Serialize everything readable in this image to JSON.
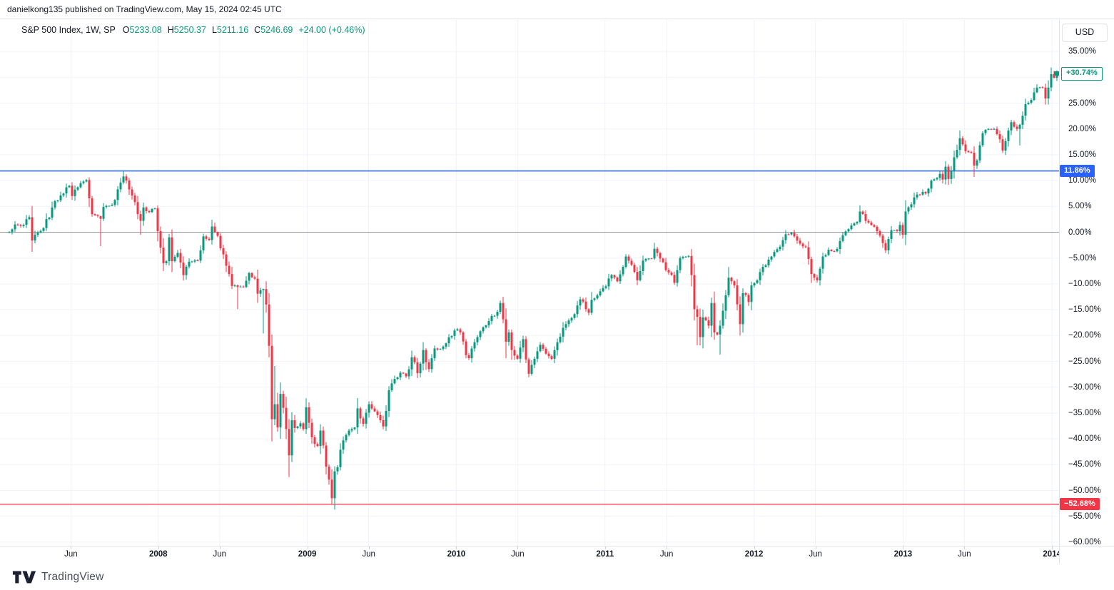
{
  "publish_bar": {
    "text": "danielkong135 published on TradingView.com, May 15, 2024 02:45 UTC"
  },
  "legend": {
    "symbol_text": "S&P 500 Index, 1W, SP",
    "fields": [
      {
        "label": "O",
        "value": "5233.08"
      },
      {
        "label": "H",
        "value": "5250.37"
      },
      {
        "label": "L",
        "value": "5211.16"
      },
      {
        "label": "C",
        "value": "5246.69"
      }
    ],
    "change_text": "+24.00 (+0.46%)"
  },
  "price_axis": {
    "currency_button": "USD",
    "ticks": [
      {
        "pct": 35,
        "label": "35.00%"
      },
      {
        "pct": 30,
        "label": "30.00%"
      },
      {
        "pct": 25,
        "label": "25.00%"
      },
      {
        "pct": 20,
        "label": "20.00%"
      },
      {
        "pct": 15,
        "label": "15.00%"
      },
      {
        "pct": 10,
        "label": "10.00%"
      },
      {
        "pct": 5,
        "label": "5.00%"
      },
      {
        "pct": 0,
        "label": "0.00%"
      },
      {
        "pct": -5,
        "label": "−5.00%"
      },
      {
        "pct": -10,
        "label": "−10.00%"
      },
      {
        "pct": -15,
        "label": "−15.00%"
      },
      {
        "pct": -20,
        "label": "−20.00%"
      },
      {
        "pct": -25,
        "label": "−25.00%"
      },
      {
        "pct": -30,
        "label": "−30.00%"
      },
      {
        "pct": -35,
        "label": "−35.00%"
      },
      {
        "pct": -40,
        "label": "−40.00%"
      },
      {
        "pct": -45,
        "label": "−45.00%"
      },
      {
        "pct": -50,
        "label": "−50.00%"
      },
      {
        "pct": -55,
        "label": "−55.00%"
      },
      {
        "pct": -60,
        "label": "−60.00%"
      }
    ]
  },
  "time_axis": {
    "ticks": [
      {
        "week": 21.6,
        "label": "Jun",
        "year": false
      },
      {
        "week": 52.2,
        "label": "2008",
        "year": true
      },
      {
        "week": 73.7,
        "label": "Jun",
        "year": false
      },
      {
        "week": 104.4,
        "label": "2009",
        "year": true
      },
      {
        "week": 125.9,
        "label": "Jun",
        "year": false
      },
      {
        "week": 156.6,
        "label": "2010",
        "year": true
      },
      {
        "week": 178.1,
        "label": "Jun",
        "year": false
      },
      {
        "week": 208.7,
        "label": "2011",
        "year": true
      },
      {
        "week": 230.3,
        "label": "Jun",
        "year": false
      },
      {
        "week": 260.9,
        "label": "2012",
        "year": true
      },
      {
        "week": 282.4,
        "label": "Jun",
        "year": false
      },
      {
        "week": 313.1,
        "label": "2013",
        "year": true
      },
      {
        "week": 334.6,
        "label": "Jun",
        "year": false
      },
      {
        "week": 365.3,
        "label": "2014",
        "year": true
      }
    ]
  },
  "levels": {
    "high_line": {
      "pct": 11.86,
      "label": "11.86%",
      "color": "#2962ff"
    },
    "low_line": {
      "pct": -52.68,
      "label": "−52.68%",
      "color": "#f23645"
    },
    "last_price": {
      "pct": 30.74,
      "label": "+30.74%",
      "color": "#089981"
    },
    "zero_line": {
      "pct": 0,
      "color": "#9598a1"
    }
  },
  "footer": {
    "brand": "TradingView"
  },
  "chart_data": {
    "type": "candlestick",
    "symbol": "S&P 500 Index",
    "interval": "1W",
    "exchange": "SP",
    "scale": "percent-change",
    "x_start": "2007-01",
    "x_end": "2014-01",
    "weeks_total": 368,
    "ylim_pct": [
      -62,
      37
    ],
    "grid": true,
    "up_color": "#089981",
    "down_color": "#f23645",
    "grid_color": "#f0f3fa",
    "key_points": {
      "cycle_high_pct": 11.86,
      "cycle_low_pct": -52.68,
      "last_close_pct": 30.74
    },
    "weekly_close_pct_anchors": [
      [
        0,
        0
      ],
      [
        2,
        1.5
      ],
      [
        4,
        1.2
      ],
      [
        7,
        2.9
      ],
      [
        8,
        -1.6
      ],
      [
        9,
        -0.5
      ],
      [
        12,
        0.8
      ],
      [
        16,
        6
      ],
      [
        19,
        7.5
      ],
      [
        21,
        9
      ],
      [
        22,
        7
      ],
      [
        24,
        8.7
      ],
      [
        27,
        10.1
      ],
      [
        29,
        3.5
      ],
      [
        31,
        3.1
      ],
      [
        32,
        2.6
      ],
      [
        33,
        4.9
      ],
      [
        36,
        5.3
      ],
      [
        38,
        8.3
      ],
      [
        40,
        10.8
      ],
      [
        41,
        10
      ],
      [
        43,
        7.1
      ],
      [
        45,
        3.5
      ],
      [
        46,
        2.2
      ],
      [
        47,
        4.8
      ],
      [
        49,
        3.9
      ],
      [
        51,
        4.6
      ],
      [
        52,
        0.2
      ],
      [
        54,
        -6
      ],
      [
        55,
        -5.6
      ],
      [
        56,
        -1
      ],
      [
        57,
        -5.6
      ],
      [
        59,
        -4
      ],
      [
        61,
        -8.3
      ],
      [
        63,
        -5.7
      ],
      [
        66,
        -5.5
      ],
      [
        68,
        -0.8
      ],
      [
        70,
        -1.5
      ],
      [
        71,
        1.1
      ],
      [
        73,
        -0.7
      ],
      [
        76,
        -6.5
      ],
      [
        78,
        -10.4
      ],
      [
        80,
        -10.6
      ],
      [
        82,
        -10.6
      ],
      [
        84,
        -7.9
      ],
      [
        86,
        -9
      ],
      [
        87,
        -11.9
      ],
      [
        88,
        -11.2
      ],
      [
        89,
        -11
      ],
      [
        90,
        -14
      ],
      [
        91,
        -22
      ],
      [
        92,
        -36.2
      ],
      [
        93,
        -33.3
      ],
      [
        94,
        -37.8
      ],
      [
        95,
        -31.3
      ],
      [
        96,
        -34
      ],
      [
        97,
        -38.1
      ],
      [
        98,
        -43.2
      ],
      [
        99,
        -36.4
      ],
      [
        100,
        -37.9
      ],
      [
        101,
        -37.6
      ],
      [
        102,
        -37
      ],
      [
        103,
        -38.1
      ],
      [
        104,
        -33.9
      ],
      [
        105,
        -36.9
      ],
      [
        106,
        -39.7
      ],
      [
        107,
        -41
      ],
      [
        108,
        -41.4
      ],
      [
        109,
        -38.4
      ],
      [
        110,
        -41.3
      ],
      [
        111,
        -45.4
      ],
      [
        112,
        -47.9
      ],
      [
        113,
        -51.5
      ],
      [
        114,
        -46.3
      ],
      [
        115,
        -45.5
      ],
      [
        116,
        -42.1
      ],
      [
        117,
        -40.3
      ],
      [
        119,
        -38.4
      ],
      [
        121,
        -37.8
      ],
      [
        122,
        -34.1
      ],
      [
        124,
        -37.1
      ],
      [
        126,
        -33.3
      ],
      [
        128,
        -34.7
      ],
      [
        130,
        -36.4
      ],
      [
        131,
        -37.6
      ],
      [
        133,
        -30.6
      ],
      [
        135,
        -28.4
      ],
      [
        137,
        -27.2
      ],
      [
        139,
        -27.9
      ],
      [
        141,
        -24.2
      ],
      [
        143,
        -27.3
      ],
      [
        145,
        -22.8
      ],
      [
        147,
        -26.5
      ],
      [
        149,
        -22.5
      ],
      [
        151,
        -22.6
      ],
      [
        153,
        -21.5
      ],
      [
        155,
        -20.1
      ],
      [
        157,
        -18.8
      ],
      [
        158,
        -19.4
      ],
      [
        160,
        -23.8
      ],
      [
        161,
        -24.4
      ],
      [
        163,
        -21.3
      ],
      [
        166,
        -18.4
      ],
      [
        168,
        -17.2
      ],
      [
        171,
        -15.4
      ],
      [
        172,
        -13.7
      ],
      [
        174,
        -21.2
      ],
      [
        175,
        -19.4
      ],
      [
        176,
        -22.8
      ],
      [
        178,
        -24.5
      ],
      [
        180,
        -20.7
      ],
      [
        182,
        -27.4
      ],
      [
        184,
        -24.5
      ],
      [
        186,
        -21.8
      ],
      [
        188,
        -23.5
      ],
      [
        190,
        -24.5
      ],
      [
        192,
        -21.3
      ],
      [
        194,
        -18.5
      ],
      [
        197,
        -16.6
      ],
      [
        200,
        -13
      ],
      [
        202,
        -14.9
      ],
      [
        203,
        -15.6
      ],
      [
        204,
        -13.1
      ],
      [
        208,
        -10.8
      ],
      [
        211,
        -8.3
      ],
      [
        213,
        -9.5
      ],
      [
        216,
        -4.7
      ],
      [
        218,
        -6.3
      ],
      [
        220,
        -9.3
      ],
      [
        222,
        -5.5
      ],
      [
        225,
        -5.1
      ],
      [
        226,
        -3.2
      ],
      [
        228,
        -5.1
      ],
      [
        231,
        -7.8
      ],
      [
        233,
        -9.8
      ],
      [
        235,
        -5
      ],
      [
        238,
        -4.6
      ],
      [
        239,
        -8.3
      ],
      [
        240,
        -14.9
      ],
      [
        241,
        -16.4
      ],
      [
        242,
        -20.3
      ],
      [
        243,
        -16.5
      ],
      [
        245,
        -18.1
      ],
      [
        246,
        -13.7
      ],
      [
        247,
        -19.4
      ],
      [
        248,
        -19.8
      ],
      [
        249,
        -18.1
      ],
      [
        251,
        -12.2
      ],
      [
        252,
        -8.8
      ],
      [
        254,
        -10.3
      ],
      [
        256,
        -17.8
      ],
      [
        257,
        -11.8
      ],
      [
        259,
        -13.5
      ],
      [
        260,
        -10.3
      ],
      [
        262,
        -9.3
      ],
      [
        264,
        -6.7
      ],
      [
        267,
        -4.7
      ],
      [
        270,
        -2.8
      ],
      [
        272,
        -0.4
      ],
      [
        274,
        -0.1
      ],
      [
        275,
        -0.8
      ],
      [
        277,
        -2.2
      ],
      [
        279,
        -2.9
      ],
      [
        281,
        -8.1
      ],
      [
        283,
        -9.3
      ],
      [
        285,
        -4.7
      ],
      [
        287,
        -3.4
      ],
      [
        289,
        -3.7
      ],
      [
        291,
        -1.7
      ],
      [
        294,
        0.6
      ],
      [
        297,
        2
      ],
      [
        298,
        4
      ],
      [
        300,
        2.2
      ],
      [
        302,
        1.4
      ],
      [
        304,
        0.2
      ],
      [
        306,
        -2.1
      ],
      [
        307,
        -3.5
      ],
      [
        309,
        0.4
      ],
      [
        311,
        0.2
      ],
      [
        312,
        1.4
      ],
      [
        313,
        -0.5
      ],
      [
        314,
        4
      ],
      [
        316,
        5.4
      ],
      [
        318,
        7.3
      ],
      [
        320,
        7.8
      ],
      [
        321,
        7.5
      ],
      [
        323,
        10
      ],
      [
        325,
        10.5
      ],
      [
        326,
        11.3
      ],
      [
        327,
        10.2
      ],
      [
        328,
        12.7
      ],
      [
        329,
        10.3
      ],
      [
        331,
        14.5
      ],
      [
        333,
        18.2
      ],
      [
        334,
        17
      ],
      [
        335,
        15.7
      ],
      [
        337,
        15.4
      ],
      [
        338,
        12.9
      ],
      [
        339,
        13.9
      ],
      [
        341,
        19.2
      ],
      [
        343,
        20
      ],
      [
        345,
        20
      ],
      [
        347,
        18
      ],
      [
        348,
        15.8
      ],
      [
        350,
        19.7
      ],
      [
        351,
        21.3
      ],
      [
        353,
        20
      ],
      [
        354,
        20.8
      ],
      [
        356,
        24.8
      ],
      [
        358,
        25.6
      ],
      [
        360,
        28
      ],
      [
        362,
        28
      ],
      [
        363,
        25.9
      ],
      [
        365,
        30.6
      ],
      [
        366,
        29.9
      ],
      [
        367,
        30.74
      ]
    ],
    "wick_extremes": [
      {
        "week": 32,
        "low": -2.7
      },
      {
        "week": 40,
        "high": 11.86
      },
      {
        "week": 46,
        "low": -0.5
      },
      {
        "week": 80,
        "low": -14.9
      },
      {
        "week": 89,
        "low": -19.6
      },
      {
        "week": 92,
        "low": -40.5
      },
      {
        "week": 93,
        "high": -25.9
      },
      {
        "week": 98,
        "low": -47.4
      },
      {
        "week": 113,
        "low": -52.68
      },
      {
        "week": 174,
        "low": -24.4
      },
      {
        "week": 241,
        "low": -21.9
      },
      {
        "week": 249,
        "low": -23.7
      },
      {
        "week": 333,
        "high": 19.7
      },
      {
        "week": 338,
        "low": 10.7
      },
      {
        "week": 354,
        "low": 16.8
      }
    ]
  }
}
